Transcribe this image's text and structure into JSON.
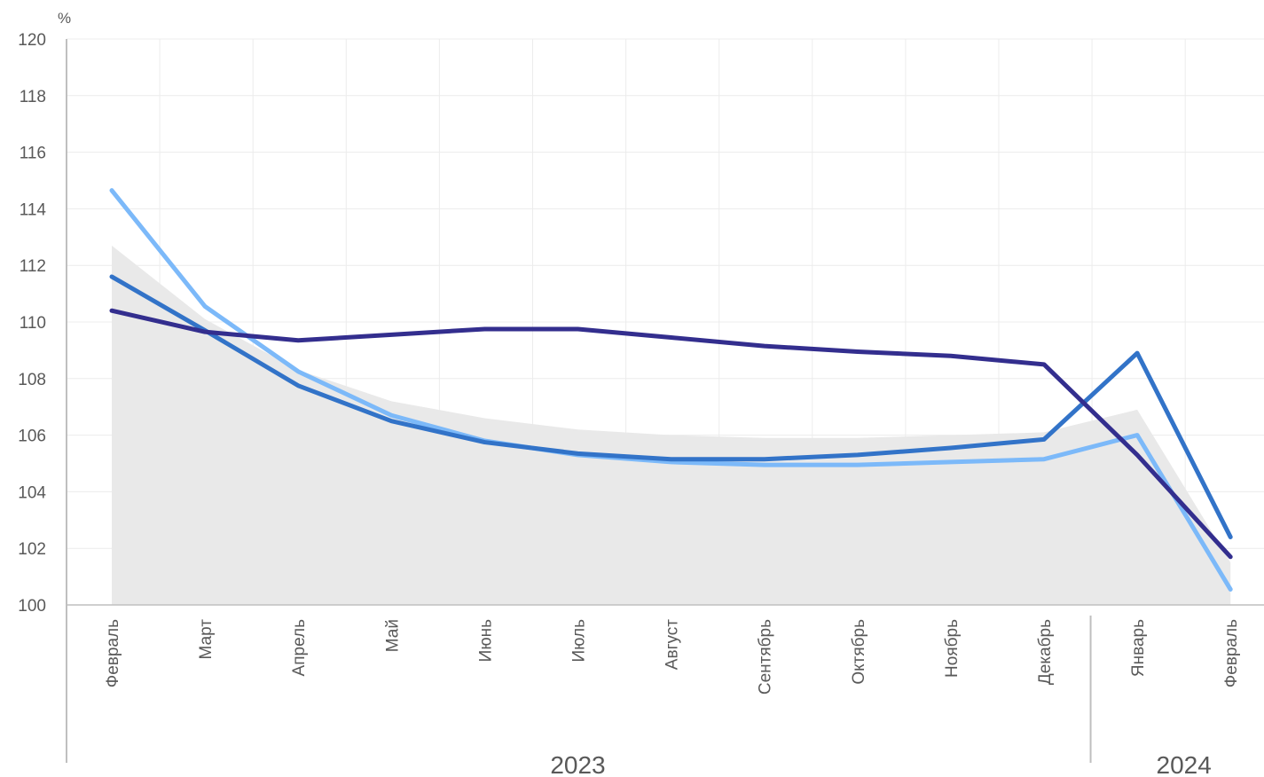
{
  "chart_data": {
    "type": "line",
    "unit_label": "%",
    "ylim": [
      100,
      120
    ],
    "yticks": [
      "100",
      "102",
      "104",
      "106",
      "108",
      "110",
      "112",
      "114",
      "116",
      "118",
      "120"
    ],
    "categories": [
      "Февраль",
      "Март",
      "Апрель",
      "Май",
      "Июнь",
      "Июль",
      "Август",
      "Сентябрь",
      "Октябрь",
      "Ноябрь",
      "Декабрь",
      "Январь",
      "Февраль"
    ],
    "year_groups": [
      {
        "label": "2023",
        "start": 0,
        "end": 10
      },
      {
        "label": "2024",
        "start": 11,
        "end": 12
      }
    ],
    "grid": true,
    "legend": "none",
    "area_series": {
      "color": "#e9e9e9",
      "values": [
        112.7,
        110.1,
        108.3,
        107.2,
        106.6,
        106.2,
        106.0,
        105.9,
        105.9,
        106.0,
        106.1,
        106.9,
        101.5
      ]
    },
    "series": [
      {
        "color": "#7cb9f9",
        "values": [
          114.65,
          110.55,
          108.25,
          106.7,
          105.8,
          105.3,
          105.05,
          104.95,
          104.95,
          105.05,
          105.15,
          106.0,
          100.55
        ]
      },
      {
        "color": "#3273c8",
        "values": [
          111.6,
          109.7,
          107.75,
          106.5,
          105.75,
          105.35,
          105.15,
          105.15,
          105.3,
          105.55,
          105.85,
          108.9,
          102.4
        ]
      },
      {
        "color": "#332e8e",
        "values": [
          110.4,
          109.65,
          109.35,
          109.55,
          109.75,
          109.75,
          109.45,
          109.15,
          108.95,
          108.8,
          108.5,
          105.3,
          101.7
        ]
      }
    ]
  }
}
